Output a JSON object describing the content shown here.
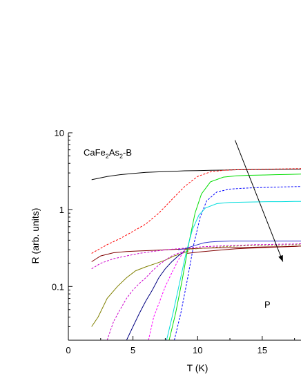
{
  "chart_data": {
    "type": "line",
    "title": "",
    "xlabel": "T (K)",
    "ylabel": "R (arb. units)",
    "xlim": [
      0,
      18
    ],
    "ylim": [
      0.02,
      10
    ],
    "yscale": "log",
    "grid": false,
    "xticks": [
      0,
      5,
      10,
      15
    ],
    "xtick_labels": [
      "0",
      "5",
      "10",
      "15"
    ],
    "yticks": [
      0.1,
      1,
      10
    ],
    "ytick_labels": [
      "0.1",
      "1",
      "10"
    ],
    "annotations": {
      "sample_main": "CaFe",
      "sample_sub1": "2",
      "sample_mid": "As",
      "sample_sub2": "2",
      "sample_suffix": "-B",
      "arrow_label": "P",
      "arrow_from": {
        "x": 12.9,
        "y": 8.0
      },
      "arrow_to": {
        "x": 16.6,
        "y": 0.21
      }
    },
    "series": [
      {
        "color": "#000000",
        "dash": false,
        "x": [
          1.8,
          3,
          4,
          5,
          6,
          7,
          8,
          9,
          10,
          11,
          12,
          13,
          14,
          15,
          16,
          17,
          18
        ],
        "y": [
          2.45,
          2.7,
          2.85,
          2.95,
          3.05,
          3.1,
          3.15,
          3.2,
          3.22,
          3.25,
          3.27,
          3.3,
          3.32,
          3.33,
          3.34,
          3.35,
          3.36
        ]
      },
      {
        "color": "#ff0000",
        "dash": true,
        "x": [
          1.8,
          3,
          4,
          5,
          6,
          7,
          8,
          9,
          10,
          11,
          12,
          13,
          14,
          15,
          16,
          17,
          18
        ],
        "y": [
          0.27,
          0.35,
          0.42,
          0.52,
          0.65,
          0.9,
          1.35,
          2.0,
          2.7,
          3.1,
          3.25,
          3.3,
          3.32,
          3.35,
          3.38,
          3.4,
          3.42
        ]
      },
      {
        "color": "#00dd00",
        "dash": false,
        "x": [
          7.8,
          8.3,
          8.8,
          9.3,
          9.8,
          10.3,
          11,
          12,
          13,
          14,
          15,
          16,
          17,
          18
        ],
        "y": [
          0.02,
          0.045,
          0.12,
          0.35,
          0.9,
          1.6,
          2.3,
          2.65,
          2.75,
          2.8,
          2.82,
          2.85,
          2.87,
          2.9
        ]
      },
      {
        "color": "#0000ff",
        "dash": true,
        "x": [
          8.2,
          8.7,
          9.2,
          9.7,
          10.2,
          10.7,
          11.5,
          12.5,
          13.5,
          14.5,
          15.5,
          16.5,
          17.5,
          18
        ],
        "y": [
          0.02,
          0.045,
          0.12,
          0.35,
          0.8,
          1.3,
          1.7,
          1.85,
          1.9,
          1.93,
          1.95,
          1.97,
          1.99,
          2.0
        ]
      },
      {
        "color": "#00dddd",
        "dash": false,
        "x": [
          7.6,
          8.1,
          8.6,
          9.1,
          9.6,
          10.1,
          10.6,
          11.5,
          12.5,
          13.5,
          14.5,
          15.5,
          16.5,
          17.5,
          18
        ],
        "y": [
          0.02,
          0.045,
          0.11,
          0.27,
          0.55,
          0.85,
          1.05,
          1.2,
          1.24,
          1.25,
          1.26,
          1.27,
          1.27,
          1.28,
          1.28
        ]
      },
      {
        "color": "#800000",
        "dash": false,
        "x": [
          1.8,
          2.5,
          3.5,
          4.5,
          5.5,
          6.5,
          7.5,
          8.5,
          9.5,
          10.5,
          11.5,
          12.5,
          13.5,
          14.5,
          15.5,
          16.5,
          17.5,
          18
        ],
        "y": [
          0.21,
          0.25,
          0.275,
          0.285,
          0.29,
          0.295,
          0.3,
          0.305,
          0.31,
          0.315,
          0.318,
          0.32,
          0.322,
          0.325,
          0.328,
          0.33,
          0.333,
          0.335
        ]
      },
      {
        "color": "#cc00cc",
        "dash": true,
        "x": [
          1.8,
          2.5,
          3.5,
          4.5,
          5.5,
          6.5,
          7.5,
          8.5,
          9.5,
          10.5,
          11.5,
          12.5,
          13.5,
          14.5,
          15.5,
          16.5,
          17.5,
          18
        ],
        "y": [
          0.17,
          0.2,
          0.23,
          0.25,
          0.27,
          0.285,
          0.3,
          0.31,
          0.32,
          0.33,
          0.335,
          0.34,
          0.345,
          0.35,
          0.352,
          0.355,
          0.357,
          0.36
        ]
      },
      {
        "color": "#3333cc",
        "dash": false,
        "x": [
          8.5,
          9,
          9.5,
          10,
          10.5,
          11,
          11.5,
          12.5,
          13.5,
          14.5,
          15.5,
          16.5,
          17.5,
          18
        ],
        "y": [
          0.3,
          0.31,
          0.33,
          0.35,
          0.37,
          0.38,
          0.385,
          0.39,
          0.39,
          0.39,
          0.39,
          0.39,
          0.39,
          0.39
        ]
      },
      {
        "color": "#999933",
        "dash": true,
        "x": [
          9,
          10,
          11,
          12,
          13,
          14,
          15,
          16,
          17,
          18
        ],
        "y": [
          0.3,
          0.31,
          0.32,
          0.33,
          0.335,
          0.34,
          0.342,
          0.345,
          0.347,
          0.35
        ]
      },
      {
        "color": "#808000",
        "dash": false,
        "x": [
          1.8,
          2.3,
          3.0,
          3.8,
          4.5,
          5.2,
          6.0,
          6.8,
          7.5,
          8.2,
          8.8,
          9.3
        ],
        "y": [
          0.03,
          0.04,
          0.07,
          0.1,
          0.13,
          0.16,
          0.18,
          0.2,
          0.22,
          0.25,
          0.27,
          0.29
        ]
      },
      {
        "color": "#cc00cc",
        "dash": true,
        "x": [
          3.0,
          3.5,
          4.0,
          4.5,
          5.0,
          5.5,
          6.0,
          6.5,
          7.0,
          7.5,
          8.0,
          8.5,
          9.0
        ],
        "y": [
          0.02,
          0.035,
          0.05,
          0.07,
          0.09,
          0.11,
          0.13,
          0.16,
          0.19,
          0.22,
          0.25,
          0.27,
          0.29
        ]
      },
      {
        "color": "#000080",
        "dash": false,
        "x": [
          4.5,
          5.0,
          5.5,
          6.0,
          6.5,
          7.0,
          7.5,
          8.0,
          8.5,
          9.0
        ],
        "y": [
          0.02,
          0.03,
          0.045,
          0.065,
          0.09,
          0.13,
          0.17,
          0.21,
          0.25,
          0.29
        ]
      },
      {
        "color": "#ff00ff",
        "dash": true,
        "x": [
          6.2,
          6.6,
          7.0,
          7.5,
          8.0,
          8.5,
          9.0
        ],
        "y": [
          0.02,
          0.04,
          0.06,
          0.1,
          0.15,
          0.22,
          0.3
        ]
      },
      {
        "color": "#800000",
        "dash": false,
        "x": [
          9.2,
          10,
          11,
          12,
          13,
          14,
          15,
          16,
          17,
          18
        ],
        "y": [
          0.27,
          0.28,
          0.29,
          0.3,
          0.31,
          0.315,
          0.32,
          0.325,
          0.33,
          0.335
        ]
      }
    ]
  }
}
